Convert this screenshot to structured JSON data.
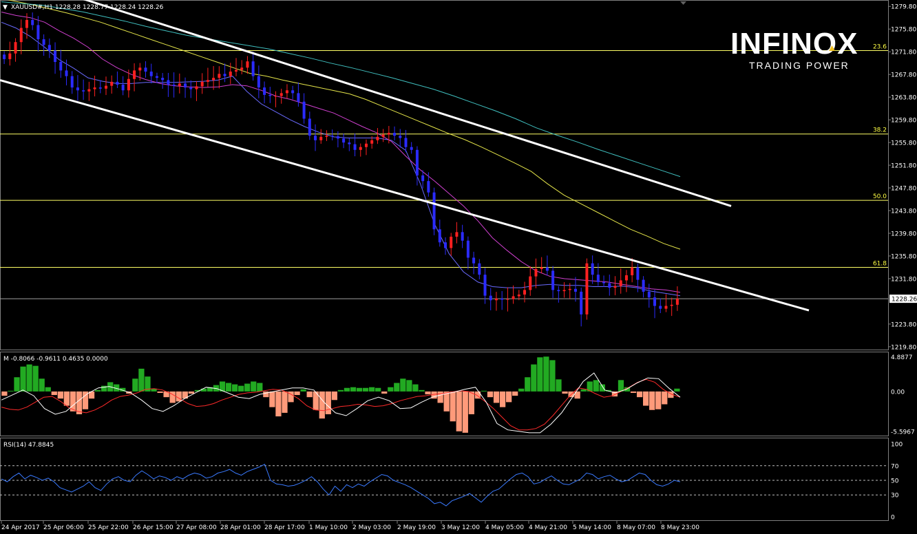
{
  "header": {
    "symbol_line": "XAUUSD#,H1  1228.28 1228.77 1228.24 1228.26",
    "dropdown_glyph": "▼"
  },
  "logo": {
    "brand": "INFINOX",
    "tagline": "TRADING POWER"
  },
  "colors": {
    "background": "#000000",
    "bull_candle": "#ff2020",
    "bear_candle": "#2b2bff",
    "fib_line": "#ffff66",
    "trendline": "#ffffff",
    "ma_fast": "#6a6aff",
    "ma_mid": "#d040d0",
    "ma_slow": "#e6e64a",
    "ma_long": "#40c0c0",
    "macd_pos": "#22aa22",
    "macd_neg": "#ff9a7a",
    "rsi_line": "#3a7aff"
  },
  "chart_data": [
    {
      "type": "candlestick",
      "panel": "main",
      "y_ticks": [
        "1279.80",
        "1275.80",
        "1271.80",
        "1267.80",
        "1263.80",
        "1259.80",
        "1255.80",
        "1251.80",
        "1247.80",
        "1243.80",
        "1239.80",
        "1235.80",
        "1231.80",
        "1228.26",
        "1223.80",
        "1219.80"
      ],
      "ylim": [
        1219.3,
        1280.8
      ],
      "current_price": "1228.26",
      "fib_levels": [
        {
          "label": "23.6",
          "price": 1272.0
        },
        {
          "label": "38.2",
          "price": 1257.3
        },
        {
          "label": "50.0",
          "price": 1245.6
        },
        {
          "label": "61.8",
          "price": 1233.8
        }
      ],
      "x_ticks": [
        "24 Apr 2017",
        "25 Apr 06:00",
        "25 Apr 22:00",
        "26 Apr 15:00",
        "27 Apr 08:00",
        "28 Apr 01:00",
        "28 Apr 17:00",
        "1 May 10:00",
        "2 May 03:00",
        "2 May 19:00",
        "3 May 12:00",
        "4 May 05:00",
        "4 May 21:00",
        "5 May 14:00",
        "8 May 07:00",
        "8 May 23:00"
      ],
      "close_path": [
        1270.5,
        1271.5,
        1273.5,
        1276,
        1277.4,
        1276.5,
        1274,
        1273,
        1272,
        1270,
        1268.5,
        1267.5,
        1265.5,
        1265,
        1264.8,
        1265.2,
        1265.5,
        1265.3,
        1265.8,
        1266.5,
        1266,
        1265,
        1267,
        1268.5,
        1269,
        1268.3,
        1267.5,
        1267.2,
        1266.8,
        1266,
        1265.8,
        1266.2,
        1265.5,
        1265.2,
        1265.7,
        1266.5,
        1266.8,
        1267.2,
        1267.9,
        1267.5,
        1268.3,
        1268.6,
        1269,
        1270.1,
        1267.5,
        1265.5,
        1264.2,
        1264,
        1264,
        1264.5,
        1265,
        1264.5,
        1263,
        1260,
        1257,
        1256.2,
        1256.8,
        1257,
        1256.9,
        1256.5,
        1255.8,
        1255.5,
        1254.5,
        1255,
        1255.6,
        1256.2,
        1256.8,
        1257.2,
        1257.5,
        1257,
        1256.6,
        1255,
        1254.5,
        1250,
        1249,
        1247,
        1240.5,
        1238.2,
        1237.2,
        1239.2,
        1240,
        1238.5,
        1235.5,
        1234.5,
        1232.5,
        1228.8,
        1228,
        1228.3,
        1228.1,
        1228.2,
        1228.7,
        1229,
        1229.8,
        1232.2,
        1233.5,
        1233.8,
        1233.2,
        1229.8,
        1229.6,
        1229.8,
        1230,
        1229.5,
        1225.5,
        1234.5,
        1232.5,
        1231.2,
        1231,
        1230.2,
        1230.5,
        1231.5,
        1232.4,
        1233.8,
        1231.6,
        1229.5,
        1228.5,
        1227,
        1226.5,
        1227,
        1227.2,
        1228.26
      ],
      "moving_averages": [
        {
          "id": "ma_fast",
          "values": [
            1277,
            1276,
            1274.5,
            1272.6,
            1270.4,
            1268.9,
            1267.2,
            1266.6,
            1266.2,
            1266.2,
            1266.4,
            1266.4,
            1266.4,
            1266.5,
            1266.6,
            1266.8,
            1267.5,
            1264.8,
            1262.6,
            1261.2,
            1259.8,
            1258.6,
            1257.6,
            1256.8,
            1256.6,
            1256.6,
            1256.6,
            1256.2,
            1254.4,
            1248.6,
            1241.4,
            1236.2,
            1233,
            1231.2,
            1230.4,
            1230.2,
            1230.2,
            1230.6,
            1230.8,
            1230.6,
            1230.6,
            1230.4,
            1230.4,
            1230.5,
            1230.2,
            1229.6,
            1229.2,
            1228.8
          ]
        },
        {
          "id": "ma_mid",
          "values": [
            1278.8,
            1278.2,
            1277.8,
            1277,
            1275.5,
            1274.2,
            1272.6,
            1270.5,
            1269,
            1267.8,
            1266.9,
            1266.2,
            1265.8,
            1265.6,
            1265.5,
            1265.6,
            1266,
            1265.8,
            1265,
            1264,
            1263.4,
            1262.6,
            1261.8,
            1261,
            1259.8,
            1258.6,
            1257.5,
            1256,
            1253.4,
            1251,
            1249,
            1246.8,
            1244.6,
            1242,
            1239,
            1236.8,
            1234.8,
            1233.2,
            1232.2,
            1231.8,
            1231.6,
            1231.4,
            1231.2,
            1230.8,
            1230.4,
            1230,
            1229.8,
            1229.4
          ]
        },
        {
          "id": "ma_slow",
          "values": [
            1281.2,
            1280.6,
            1280,
            1279.3,
            1278.6,
            1277.8,
            1277,
            1276,
            1275,
            1274,
            1273,
            1272,
            1271,
            1270,
            1269,
            1268,
            1267.5,
            1266.8,
            1266.2,
            1265.6,
            1265,
            1264.4,
            1263.4,
            1262.2,
            1261,
            1259.8,
            1258.6,
            1257.4,
            1256.3,
            1255,
            1253.6,
            1252.2,
            1250.7,
            1248.5,
            1246.5,
            1245,
            1243.5,
            1242,
            1240.5,
            1239.3,
            1238,
            1237
          ]
        },
        {
          "id": "ma_long",
          "values": [
            1280.6,
            1280.3,
            1280,
            1279.4,
            1278.8,
            1278,
            1277.2,
            1276.3,
            1275.5,
            1274.7,
            1274.1,
            1273.5,
            1272.9,
            1272.3,
            1271.5,
            1270.7,
            1269.8,
            1269,
            1268.1,
            1267.2,
            1266.2,
            1265.2,
            1264,
            1262.7,
            1261.4,
            1260,
            1258.4,
            1257.1,
            1255.9,
            1254.6,
            1253.4,
            1252.2,
            1251,
            1249.8
          ]
        }
      ],
      "trendlines": [
        {
          "id": "upper-channel",
          "from": [
            0.086,
            1281.6
          ],
          "to": [
            0.796,
            1244.6
          ]
        },
        {
          "id": "lower-channel",
          "from": [
            0.0,
            1266.8
          ],
          "to": [
            0.881,
            1226.2
          ]
        }
      ]
    },
    {
      "type": "histogram",
      "panel": "macd",
      "indicator_label": "M -0.8066 -0.9611 0.4635 0.0000",
      "y_ticks": [
        "4.8877",
        "0.00",
        "-5.5967"
      ],
      "ylim": [
        -6.2,
        5.5
      ],
      "values": [
        -0.6,
        0.1,
        2.0,
        3.5,
        3.8,
        3.6,
        1.8,
        0.6,
        -0.5,
        -1.0,
        -2.0,
        -2.8,
        -3.2,
        -2.5,
        -1.0,
        0.2,
        0.8,
        1.3,
        1.0,
        0.5,
        -0.3,
        1.8,
        3.2,
        2.1,
        0.4,
        -0.2,
        -0.8,
        -1.6,
        -1.4,
        -1.0,
        -0.3,
        0.2,
        0.4,
        0.6,
        0.9,
        1.4,
        1.2,
        1.0,
        0.8,
        1.1,
        1.4,
        1.2,
        -0.8,
        -2.2,
        -3.5,
        -3.0,
        -1.5,
        -0.5,
        0.3,
        -0.8,
        -2.6,
        -3.8,
        -3.2,
        -1.2,
        0.2,
        0.5,
        0.6,
        0.5,
        0.5,
        0.6,
        0.5,
        -0.3,
        0.6,
        1.2,
        1.8,
        1.6,
        1.0,
        0.2,
        -0.4,
        -1.0,
        -1.6,
        -2.8,
        -4.2,
        -5.6,
        -5.8,
        -3.2,
        -1.0,
        0.1,
        -0.8,
        -1.6,
        -2.2,
        -1.5,
        -0.6,
        0.4,
        2.0,
        3.8,
        4.8,
        4.9,
        4.4,
        1.7,
        -0.3,
        -0.8,
        -1.0,
        0.3,
        1.4,
        1.6,
        1.0,
        0.2,
        -0.7,
        1.6,
        0.6,
        -0.2,
        -0.8,
        -2.0,
        -2.6,
        -2.5,
        -1.8,
        -0.9,
        0.4
      ],
      "signal": [
        -2.2,
        -2.5,
        -2.6,
        -2.2,
        -1.5,
        -0.8,
        -0.7,
        -1.4,
        -2.3,
        -2.8,
        -3.0,
        -2.6,
        -2.0,
        -1.2,
        -0.7,
        -0.5,
        -0.2,
        0.3,
        0.4,
        0.2,
        -0.3,
        -1.0,
        -1.7,
        -2.1,
        -2.0,
        -1.7,
        -1.2,
        -0.8,
        -0.4,
        -0.2,
        -0.1,
        0.1,
        0.3,
        0.2,
        -0.3,
        -1.0,
        -2.0,
        -2.6,
        -2.7,
        -2.4,
        -2.1,
        -2.0,
        -1.8,
        -1.9,
        -2.1,
        -2.0,
        -1.7,
        -1.3,
        -1.0,
        -0.7,
        -0.6,
        -0.4,
        -0.3,
        -0.1,
        0.1,
        0.0,
        -0.5,
        -1.4,
        -2.4,
        -3.6,
        -4.8,
        -5.4,
        -5.4,
        -5.2,
        -4.6,
        -3.4,
        -2.0,
        -0.6,
        0.5,
        0.3,
        -0.3,
        -0.8,
        -0.6,
        0.0,
        0.6,
        1.3,
        1.7,
        1.3,
        0.3,
        -0.4,
        -0.8
      ],
      "macd_line": [
        -1.2,
        -0.5,
        0.2,
        -0.6,
        -2.4,
        -3.2,
        -2.8,
        -1.5,
        -0.3,
        0.5,
        0.7,
        0.3,
        -0.2,
        -1.2,
        -2.4,
        -2.8,
        -2.0,
        -1.0,
        -0.2,
        0.6,
        0.4,
        -0.2,
        -0.8,
        -1.0,
        -0.4,
        -0.1,
        0.2,
        0.5,
        0.5,
        0.2,
        -1.6,
        -3.0,
        -3.4,
        -2.4,
        -1.3,
        -0.8,
        -1.3,
        -2.4,
        -2.3,
        -1.5,
        -0.8,
        -0.4,
        -0.1,
        0.3,
        0.6,
        -1.5,
        -4.5,
        -5.4,
        -5.6,
        -5.8,
        -5.8,
        -4.6,
        -3.0,
        -0.8,
        1.4,
        2.6,
        0.2,
        -0.2,
        0.3,
        1.2,
        1.9,
        1.8,
        0.4,
        -0.8
      ]
    },
    {
      "type": "line",
      "panel": "rsi",
      "indicator_label": "RSI(14) 47.8845",
      "y_ticks": [
        "100",
        "70",
        "50",
        "30",
        "0"
      ],
      "levels": [
        70,
        50,
        30
      ],
      "ylim": [
        0,
        100
      ],
      "values": [
        52,
        48,
        55,
        60,
        52,
        57,
        54,
        50,
        53,
        48,
        40,
        37,
        34,
        38,
        42,
        48,
        40,
        36,
        45,
        52,
        55,
        50,
        48,
        57,
        63,
        58,
        52,
        56,
        54,
        50,
        55,
        52,
        57,
        60,
        58,
        53,
        55,
        60,
        62,
        65,
        60,
        57,
        62,
        65,
        68,
        72,
        50,
        45,
        44,
        42,
        43,
        46,
        50,
        55,
        48,
        38,
        30,
        42,
        35,
        44,
        40,
        45,
        42,
        48,
        53,
        58,
        56,
        50,
        47,
        44,
        40,
        35,
        30,
        25,
        18,
        20,
        15,
        22,
        25,
        28,
        32,
        26,
        20,
        28,
        35,
        38,
        45,
        52,
        58,
        60,
        55,
        45,
        47,
        52,
        56,
        50,
        45,
        44,
        48,
        52,
        60,
        58,
        52,
        55,
        57,
        52,
        48,
        50,
        55,
        60,
        58,
        50,
        44,
        42,
        45,
        50,
        48
      ]
    }
  ]
}
